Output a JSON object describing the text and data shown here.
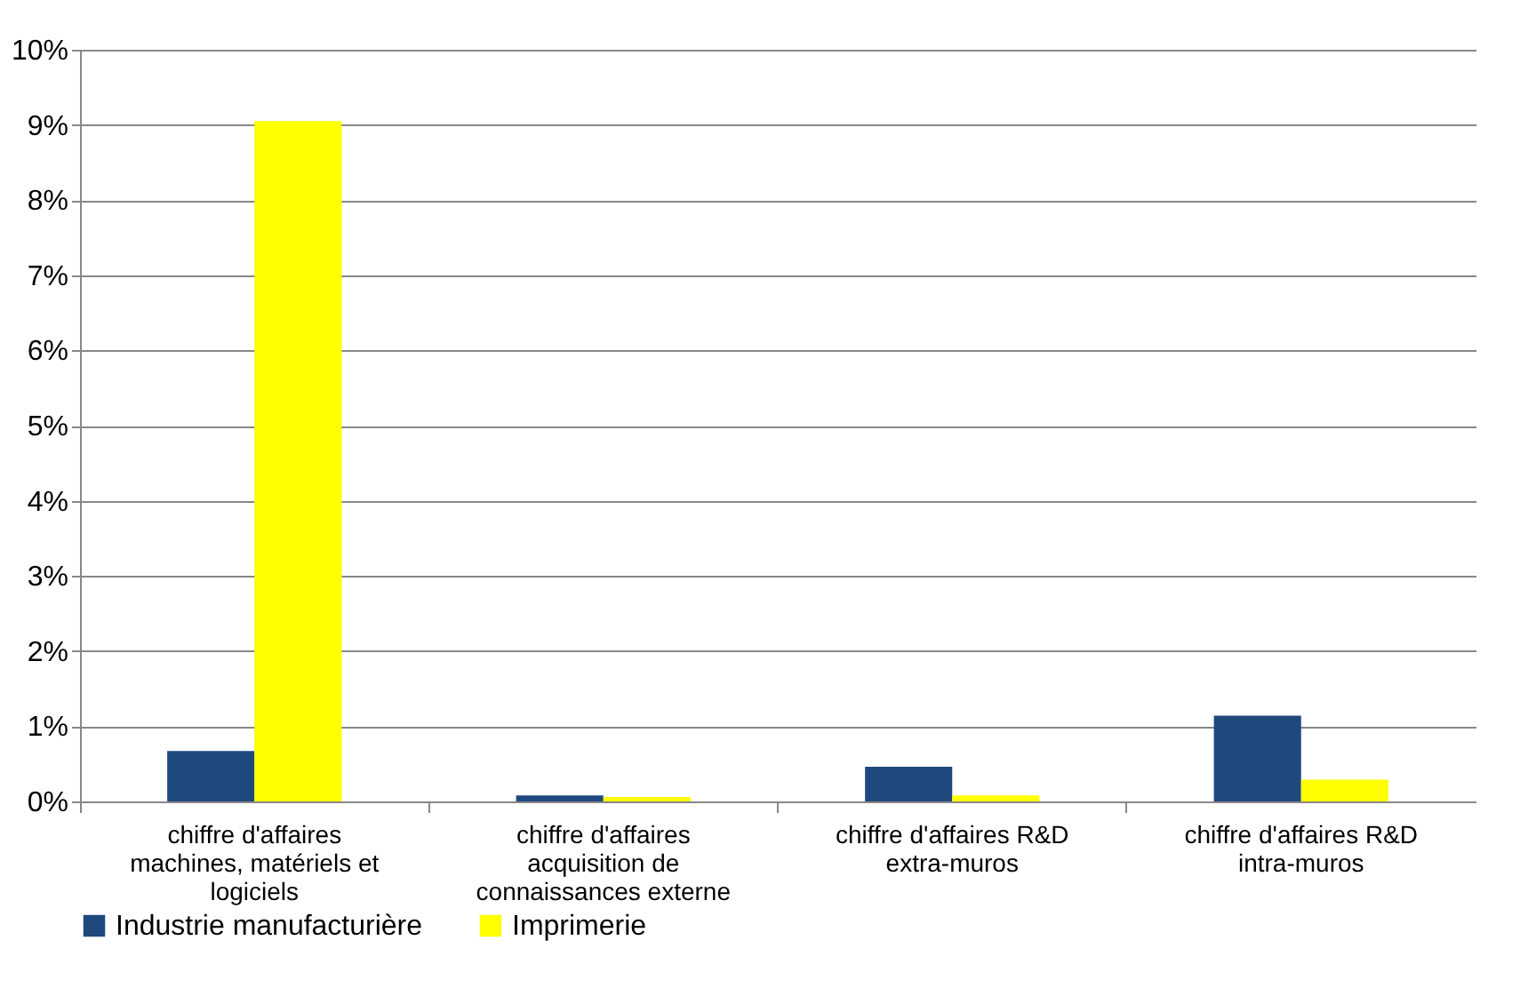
{
  "chart_data": {
    "type": "bar",
    "categories": [
      "chiffre d'affaires machines, matériels et logiciels",
      "chiffre d'affaires acquisition de connaissances externe",
      "chiffre d'affaires R&D extra-muros",
      "chiffre d'affaires R&D intra-muros"
    ],
    "series": [
      {
        "name": "Industrie manufacturière",
        "color": "#1f497d",
        "values": [
          0.67,
          0.08,
          0.46,
          1.14
        ]
      },
      {
        "name": "Imprimerie",
        "color": "#ffff00",
        "values": [
          9.05,
          0.06,
          0.08,
          0.29
        ]
      }
    ],
    "ylim": [
      0,
      10
    ],
    "yticks": [
      {
        "value": 0,
        "label": "0%"
      },
      {
        "value": 1,
        "label": "1%"
      },
      {
        "value": 2,
        "label": "2%"
      },
      {
        "value": 3,
        "label": "3%"
      },
      {
        "value": 4,
        "label": "4%"
      },
      {
        "value": 5,
        "label": "5%"
      },
      {
        "value": 6,
        "label": "6%"
      },
      {
        "value": 7,
        "label": "7%"
      },
      {
        "value": 8,
        "label": "8%"
      },
      {
        "value": 9,
        "label": "9%"
      },
      {
        "value": 10,
        "label": "10%"
      }
    ],
    "grid": "y",
    "legend": "bottom"
  }
}
